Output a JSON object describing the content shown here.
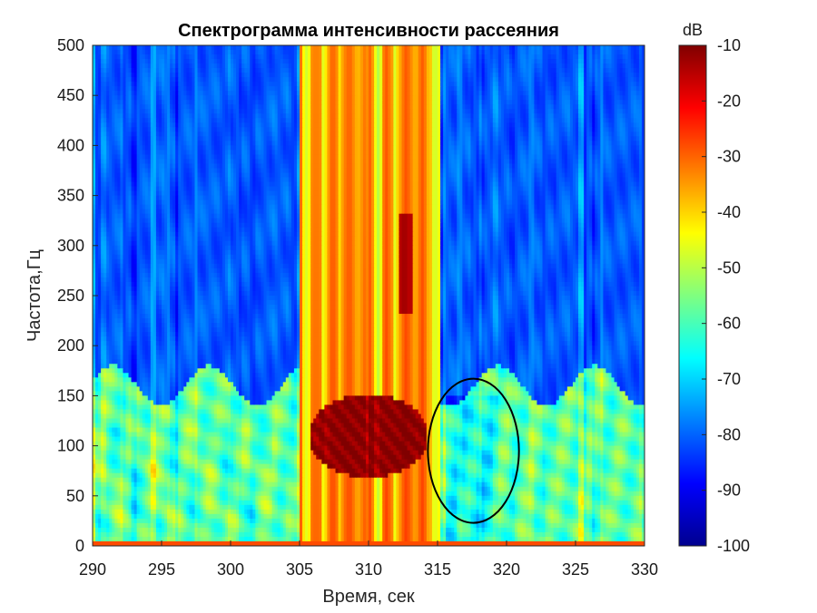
{
  "chart_data": {
    "type": "heatmap",
    "title": "Спектрограмма интенсивности рассеяния",
    "xlabel": "Время, сек",
    "ylabel": "Частота,Гц",
    "xlim": [
      290,
      330
    ],
    "ylim": [
      0,
      500
    ],
    "x_ticks": [
      "290",
      "295",
      "300",
      "305",
      "310",
      "315",
      "320",
      "325",
      "330"
    ],
    "y_ticks": [
      "0",
      "50",
      "100",
      "150",
      "200",
      "250",
      "300",
      "350",
      "400",
      "450",
      "500"
    ],
    "colorbar": {
      "label": "dB",
      "range": [
        -100,
        -10
      ],
      "ticks": [
        "-10",
        "-20",
        "-30",
        "-40",
        "-50",
        "-60",
        "-70",
        "-80",
        "-90",
        "-100"
      ],
      "colormap": "jet"
    },
    "features": [
      {
        "time_range": [
          305,
          315
        ],
        "freq_range": [
          0,
          500
        ],
        "level_db": -35
      },
      {
        "time_range": [
          306,
          314
        ],
        "freq_range": [
          70,
          150
        ],
        "level_db": -12
      },
      {
        "time_range": [
          290,
          330
        ],
        "freq_range": [
          0,
          160
        ],
        "level_db": -55
      },
      {
        "time_range": [
          290,
          305
        ],
        "freq_range": [
          160,
          500
        ],
        "level_db": -80
      },
      {
        "time_range": [
          315,
          330
        ],
        "freq_range": [
          160,
          500
        ],
        "level_db": -80
      }
    ],
    "annotation": {
      "shape": "ellipse",
      "center": [
        317.6,
        95
      ],
      "radii": [
        3.3,
        72
      ]
    }
  }
}
